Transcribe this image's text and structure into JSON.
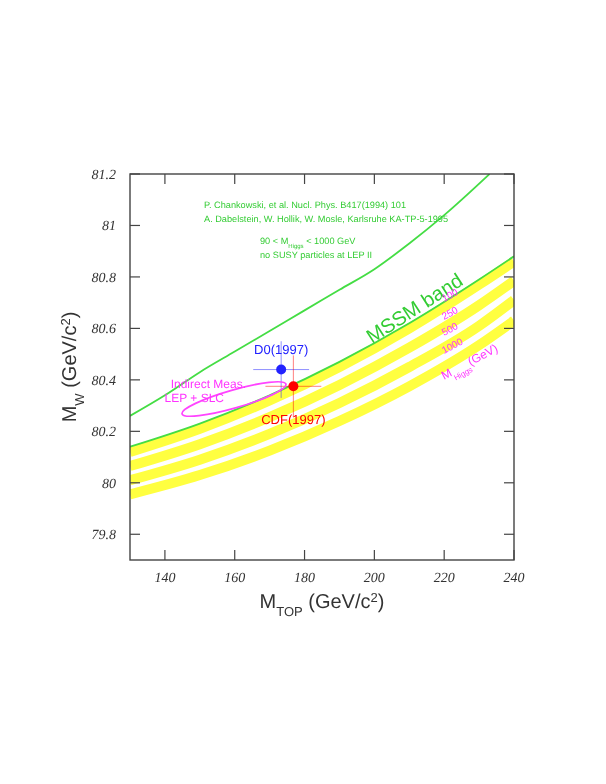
{
  "chart_data": {
    "type": "line",
    "xlabel": "M$_{TOP}$ (GeV/c$^{2}$)",
    "ylabel": "M$_{W}$ (GeV/c$^{2}$)",
    "xlim": [
      130,
      240
    ],
    "xticks": [
      140,
      160,
      180,
      200,
      220,
      240
    ],
    "ylim": [
      79.7,
      81.2
    ],
    "yticks": [
      79.8,
      80,
      80.2,
      80.4,
      80.6,
      80.8,
      81,
      81.2
    ],
    "grid": false,
    "series": [
      {
        "color": "#ffff40",
        "x": [
          130,
          150,
          170,
          190,
          210,
          230,
          240
        ],
        "values": [
          80.12,
          80.21,
          80.32,
          80.45,
          80.6,
          80.77,
          80.86
        ]
      },
      {
        "color": "#ffff40",
        "x": [
          130,
          150,
          170,
          190,
          210,
          230,
          240
        ],
        "values": [
          80.065,
          80.15,
          80.255,
          80.38,
          80.525,
          80.69,
          80.785
        ]
      },
      {
        "color": "#ffff40",
        "x": [
          130,
          150,
          170,
          190,
          210,
          230,
          240
        ],
        "values": [
          80.01,
          80.09,
          80.19,
          80.31,
          80.45,
          80.61,
          80.71
        ]
      },
      {
        "color": "#ffff40",
        "x": [
          130,
          150,
          170,
          190,
          210,
          230,
          240
        ],
        "values": [
          79.955,
          80.03,
          80.125,
          80.24,
          80.375,
          80.535,
          80.63
        ]
      },
      {
        "color": "#44dd44",
        "x": [
          130,
          150,
          170,
          190,
          210,
          230,
          240
        ],
        "values": [
          80.14,
          80.23,
          80.34,
          80.47,
          80.62,
          80.79,
          80.88
        ]
      },
      {
        "color": "#44dd44",
        "x": [
          130,
          140,
          150,
          160,
          170,
          180,
          190,
          200,
          210,
          220,
          233
        ],
        "values": [
          80.26,
          80.34,
          80.43,
          80.51,
          80.59,
          80.67,
          80.75,
          80.83,
          80.93,
          81.04,
          81.2
        ]
      },
      {
        "type": "scatter",
        "name": "D0(1997)",
        "color": "#2222ff",
        "marker": "circle",
        "x": [
          173.3
        ],
        "values": [
          80.44
        ],
        "errors": [
          0.11
        ],
        "xerrors": [
          8
        ]
      },
      {
        "type": "scatter",
        "name": "CDF(1997)",
        "color": "#ff0000",
        "marker": "circle",
        "x": [
          176.8
        ],
        "values": [
          80.375
        ],
        "errors": [
          0.12
        ],
        "xerrors": [
          8
        ]
      }
    ],
    "annotations": [
      "P. Chankowski, et al. Nucl. Phys. B417(1994) 101",
      "A. Dabelstein, W. Hollik, W. Mosle, Karlsruhe KA-TP-5-1995",
      "90 < M$_{Higgs}$ < 1000 GeV",
      "no SUSY particles at LEP II",
      "MSSM band",
      "100",
      "250",
      "500",
      "1000",
      "M$_{Higgs}$(GeV)",
      "Indirect Meas.",
      "LEP + SLC"
    ]
  }
}
